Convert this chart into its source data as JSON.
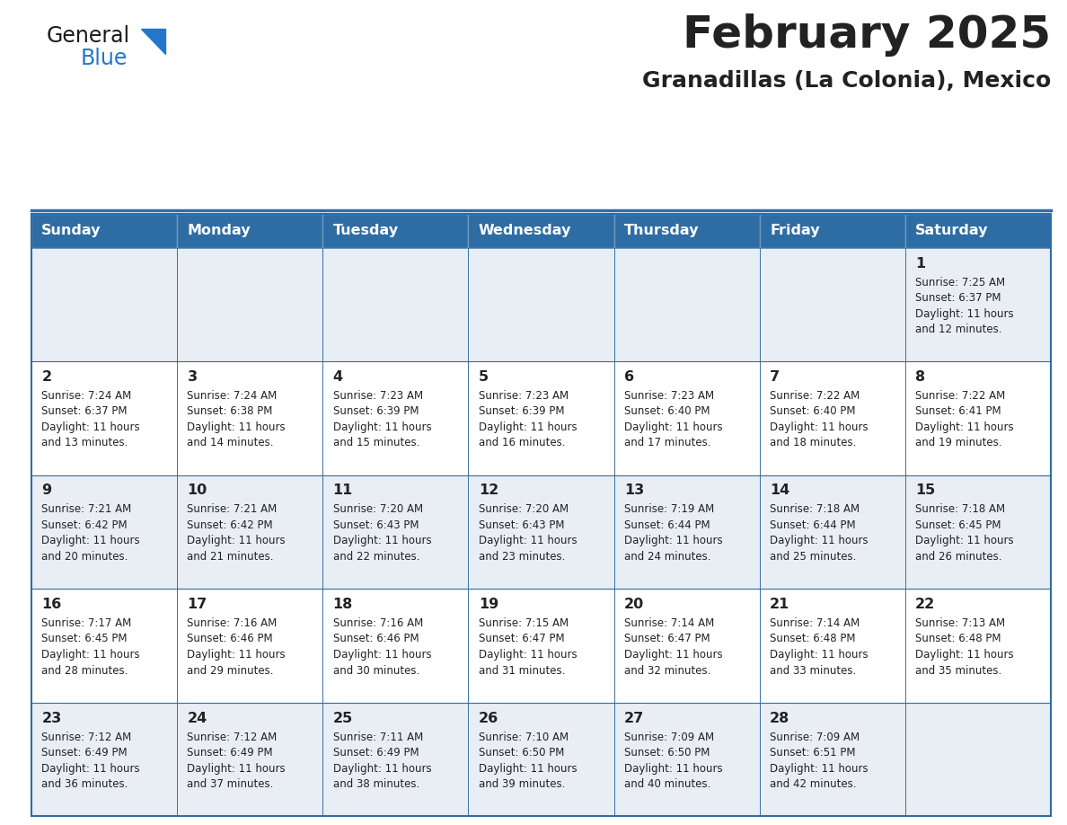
{
  "title": "February 2025",
  "subtitle": "Granadillas (La Colonia), Mexico",
  "header_bg": "#2e6da4",
  "header_text_color": "#ffffff",
  "cell_bg_light": "#e8eef4",
  "cell_bg_white": "#ffffff",
  "border_color": "#2e6da4",
  "text_color": "#222222",
  "day_headers": [
    "Sunday",
    "Monday",
    "Tuesday",
    "Wednesday",
    "Thursday",
    "Friday",
    "Saturday"
  ],
  "weeks": [
    [
      {
        "day": null,
        "info": null
      },
      {
        "day": null,
        "info": null
      },
      {
        "day": null,
        "info": null
      },
      {
        "day": null,
        "info": null
      },
      {
        "day": null,
        "info": null
      },
      {
        "day": null,
        "info": null
      },
      {
        "day": 1,
        "info": "Sunrise: 7:25 AM\nSunset: 6:37 PM\nDaylight: 11 hours\nand 12 minutes."
      }
    ],
    [
      {
        "day": 2,
        "info": "Sunrise: 7:24 AM\nSunset: 6:37 PM\nDaylight: 11 hours\nand 13 minutes."
      },
      {
        "day": 3,
        "info": "Sunrise: 7:24 AM\nSunset: 6:38 PM\nDaylight: 11 hours\nand 14 minutes."
      },
      {
        "day": 4,
        "info": "Sunrise: 7:23 AM\nSunset: 6:39 PM\nDaylight: 11 hours\nand 15 minutes."
      },
      {
        "day": 5,
        "info": "Sunrise: 7:23 AM\nSunset: 6:39 PM\nDaylight: 11 hours\nand 16 minutes."
      },
      {
        "day": 6,
        "info": "Sunrise: 7:23 AM\nSunset: 6:40 PM\nDaylight: 11 hours\nand 17 minutes."
      },
      {
        "day": 7,
        "info": "Sunrise: 7:22 AM\nSunset: 6:40 PM\nDaylight: 11 hours\nand 18 minutes."
      },
      {
        "day": 8,
        "info": "Sunrise: 7:22 AM\nSunset: 6:41 PM\nDaylight: 11 hours\nand 19 minutes."
      }
    ],
    [
      {
        "day": 9,
        "info": "Sunrise: 7:21 AM\nSunset: 6:42 PM\nDaylight: 11 hours\nand 20 minutes."
      },
      {
        "day": 10,
        "info": "Sunrise: 7:21 AM\nSunset: 6:42 PM\nDaylight: 11 hours\nand 21 minutes."
      },
      {
        "day": 11,
        "info": "Sunrise: 7:20 AM\nSunset: 6:43 PM\nDaylight: 11 hours\nand 22 minutes."
      },
      {
        "day": 12,
        "info": "Sunrise: 7:20 AM\nSunset: 6:43 PM\nDaylight: 11 hours\nand 23 minutes."
      },
      {
        "day": 13,
        "info": "Sunrise: 7:19 AM\nSunset: 6:44 PM\nDaylight: 11 hours\nand 24 minutes."
      },
      {
        "day": 14,
        "info": "Sunrise: 7:18 AM\nSunset: 6:44 PM\nDaylight: 11 hours\nand 25 minutes."
      },
      {
        "day": 15,
        "info": "Sunrise: 7:18 AM\nSunset: 6:45 PM\nDaylight: 11 hours\nand 26 minutes."
      }
    ],
    [
      {
        "day": 16,
        "info": "Sunrise: 7:17 AM\nSunset: 6:45 PM\nDaylight: 11 hours\nand 28 minutes."
      },
      {
        "day": 17,
        "info": "Sunrise: 7:16 AM\nSunset: 6:46 PM\nDaylight: 11 hours\nand 29 minutes."
      },
      {
        "day": 18,
        "info": "Sunrise: 7:16 AM\nSunset: 6:46 PM\nDaylight: 11 hours\nand 30 minutes."
      },
      {
        "day": 19,
        "info": "Sunrise: 7:15 AM\nSunset: 6:47 PM\nDaylight: 11 hours\nand 31 minutes."
      },
      {
        "day": 20,
        "info": "Sunrise: 7:14 AM\nSunset: 6:47 PM\nDaylight: 11 hours\nand 32 minutes."
      },
      {
        "day": 21,
        "info": "Sunrise: 7:14 AM\nSunset: 6:48 PM\nDaylight: 11 hours\nand 33 minutes."
      },
      {
        "day": 22,
        "info": "Sunrise: 7:13 AM\nSunset: 6:48 PM\nDaylight: 11 hours\nand 35 minutes."
      }
    ],
    [
      {
        "day": 23,
        "info": "Sunrise: 7:12 AM\nSunset: 6:49 PM\nDaylight: 11 hours\nand 36 minutes."
      },
      {
        "day": 24,
        "info": "Sunrise: 7:12 AM\nSunset: 6:49 PM\nDaylight: 11 hours\nand 37 minutes."
      },
      {
        "day": 25,
        "info": "Sunrise: 7:11 AM\nSunset: 6:49 PM\nDaylight: 11 hours\nand 38 minutes."
      },
      {
        "day": 26,
        "info": "Sunrise: 7:10 AM\nSunset: 6:50 PM\nDaylight: 11 hours\nand 39 minutes."
      },
      {
        "day": 27,
        "info": "Sunrise: 7:09 AM\nSunset: 6:50 PM\nDaylight: 11 hours\nand 40 minutes."
      },
      {
        "day": 28,
        "info": "Sunrise: 7:09 AM\nSunset: 6:51 PM\nDaylight: 11 hours\nand 42 minutes."
      },
      {
        "day": null,
        "info": null
      }
    ]
  ],
  "logo_general_color": "#1a1a1a",
  "logo_blue_color": "#2277cc",
  "logo_triangle_color": "#2277cc",
  "fig_width": 11.88,
  "fig_height": 9.18,
  "dpi": 100
}
